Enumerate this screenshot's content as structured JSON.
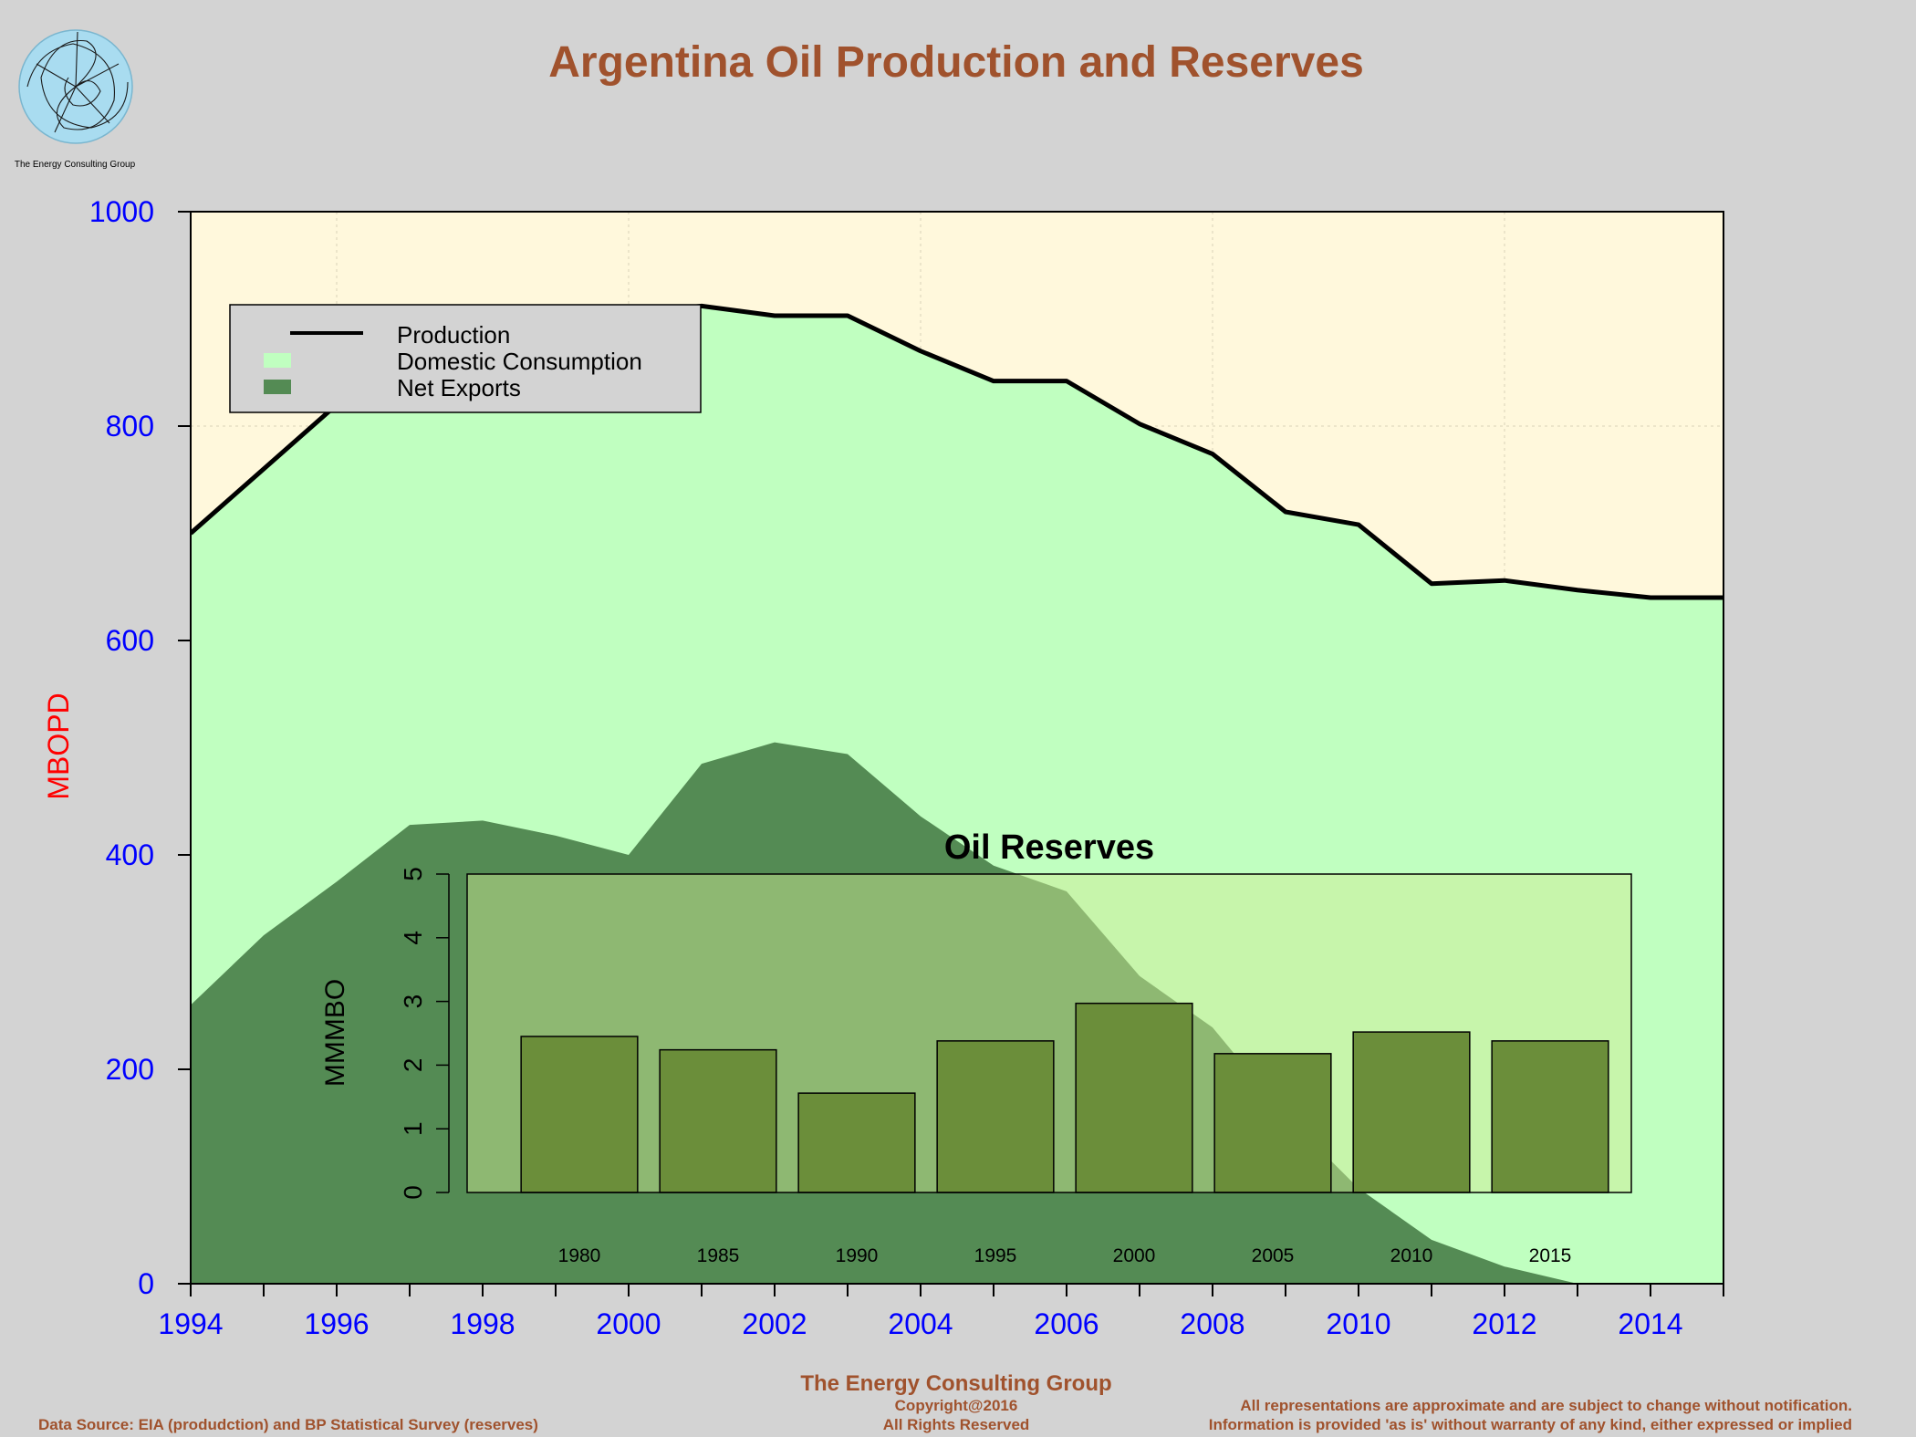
{
  "logo": {
    "caption": "The Energy Consulting Group"
  },
  "title": "Argentina Oil Production and Reserves",
  "footer": {
    "center_title": "The Energy Consulting Group",
    "copyright": "Copyright@2016",
    "rights": "All Rights Reserved",
    "source": "Data Source: EIA (produdction) and BP Statistical Survey (reserves)",
    "disclaimer_1": "All representations are approximate and are subject to change without notification.",
    "disclaimer_2": "Information is provided 'as is' without warranty of any kind, either expressed or implied"
  },
  "colors": {
    "page_bg": "#d3d3d3",
    "plot_bg": "#fff8dc",
    "consumption": "#c0ffc0",
    "exports": "#548b54",
    "production_line": "#000000",
    "title": "#a0522d",
    "axis_text": "#0000ff",
    "ylabel": "#ff0000",
    "reserves_bar": "#6b8e3a",
    "reserves_panel": "#ddfa9f"
  },
  "chart_data": [
    {
      "type": "area",
      "ylabel": "MBOPD",
      "xlim": [
        1994,
        2015
      ],
      "ylim": [
        0,
        1000
      ],
      "x_ticks": [
        1994,
        1996,
        1998,
        2000,
        2002,
        2004,
        2006,
        2008,
        2010,
        2012,
        2014
      ],
      "y_ticks": [
        0,
        200,
        400,
        600,
        800,
        1000
      ],
      "grid": true,
      "legend_placement": "top-left",
      "x": [
        1994,
        1995,
        1996,
        1997,
        1998,
        1999,
        2000,
        2001,
        2002,
        2003,
        2004,
        2005,
        2006,
        2007,
        2008,
        2009,
        2010,
        2011,
        2012,
        2013,
        2014,
        2015
      ],
      "series": [
        {
          "name": "Production",
          "kind": "line",
          "values": [
            700,
            760,
            820,
            870,
            890,
            900,
            905,
            912,
            903,
            903,
            870,
            842,
            842,
            802,
            774,
            720,
            708,
            653,
            656,
            647,
            640,
            640
          ]
        },
        {
          "name": "Domestic Consumption",
          "kind": "area",
          "values": [
            440,
            435,
            445,
            442,
            458,
            482,
            505,
            427,
            398,
            409,
            434,
            452,
            476,
            515,
            535,
            563,
            619,
            612,
            640,
            647,
            640,
            640
          ]
        },
        {
          "name": "Net Exports",
          "kind": "area",
          "values": [
            260,
            325,
            375,
            428,
            432,
            418,
            400,
            485,
            505,
            494,
            436,
            390,
            366,
            287,
            239,
            157,
            89,
            41,
            16,
            0,
            0,
            0
          ]
        }
      ]
    },
    {
      "type": "bar",
      "title": "Oil Reserves",
      "ylabel": "MMMBO",
      "ylim": [
        0,
        5
      ],
      "y_ticks": [
        0,
        1,
        2,
        3,
        4,
        5
      ],
      "categories": [
        "1980",
        "1985",
        "1990",
        "1995",
        "2000",
        "2005",
        "2010",
        "2015"
      ],
      "values": [
        2.45,
        2.24,
        1.56,
        2.38,
        2.97,
        2.18,
        2.52,
        2.38
      ]
    }
  ]
}
